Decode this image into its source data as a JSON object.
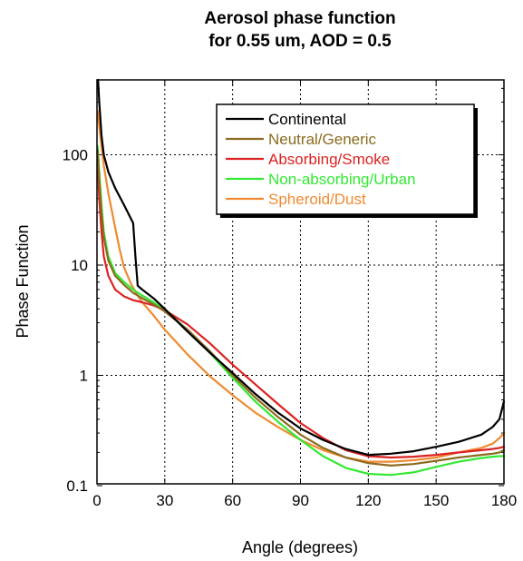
{
  "chart_data": {
    "type": "line",
    "title": "Aerosol phase function",
    "subtitle": "for 0.55 um, AOD = 0.5",
    "xlabel": "Angle (degrees)",
    "ylabel": "Phase Function",
    "xlim": [
      0,
      180
    ],
    "ylim": [
      0.1,
      600
    ],
    "yscale": "log",
    "grid": true,
    "legend_position": "top-right",
    "x_ticks": [
      0,
      30,
      60,
      90,
      120,
      150,
      180
    ],
    "x_tick_labels": [
      "0",
      "30",
      "60",
      "90",
      "120",
      "150",
      "180"
    ],
    "y_ticks": [
      0.1,
      1,
      10,
      100
    ],
    "y_tick_labels": [
      "0.1",
      "1",
      "10",
      "100"
    ],
    "series": [
      {
        "name": "Continental",
        "color": "#000000",
        "x": [
          0.5,
          1,
          2,
          3,
          5,
          8,
          12,
          16,
          17,
          18,
          20,
          25,
          30,
          40,
          50,
          60,
          70,
          80,
          90,
          100,
          110,
          120,
          130,
          140,
          150,
          160,
          170,
          175,
          178,
          180
        ],
        "y": [
          600,
          300,
          150,
          100,
          70,
          50,
          35,
          24,
          12,
          6.5,
          6.0,
          5.0,
          4.0,
          2.5,
          1.6,
          1.05,
          0.68,
          0.46,
          0.33,
          0.26,
          0.215,
          0.19,
          0.195,
          0.205,
          0.225,
          0.25,
          0.29,
          0.34,
          0.4,
          0.58
        ]
      },
      {
        "name": "Neutral/Generic",
        "color": "#8b6b1f",
        "x": [
          0.3,
          1,
          2,
          3,
          5,
          8,
          12,
          16,
          20,
          25,
          30,
          40,
          50,
          60,
          70,
          80,
          90,
          100,
          110,
          120,
          130,
          140,
          150,
          160,
          170,
          175,
          178,
          180
        ],
        "y": [
          110,
          60,
          30,
          18,
          11,
          8.0,
          6.6,
          5.6,
          5.0,
          4.4,
          3.8,
          2.6,
          1.65,
          1.0,
          0.63,
          0.42,
          0.29,
          0.22,
          0.18,
          0.16,
          0.152,
          0.157,
          0.168,
          0.18,
          0.19,
          0.195,
          0.2,
          0.21
        ]
      },
      {
        "name": "Absorbing/Smoke",
        "color": "#dd2222",
        "x": [
          0.3,
          1,
          2,
          3,
          5,
          8,
          12,
          16,
          20,
          25,
          30,
          40,
          50,
          60,
          70,
          80,
          90,
          100,
          110,
          120,
          130,
          140,
          150,
          160,
          170,
          175,
          178,
          180
        ],
        "y": [
          90,
          40,
          20,
          12,
          8.0,
          6.0,
          5.2,
          4.8,
          4.6,
          4.3,
          3.9,
          2.9,
          1.95,
          1.25,
          0.83,
          0.55,
          0.37,
          0.27,
          0.21,
          0.185,
          0.18,
          0.183,
          0.19,
          0.2,
          0.21,
          0.215,
          0.22,
          0.225
        ]
      },
      {
        "name": "Non-absorbing/Urban",
        "color": "#33e833",
        "x": [
          0.3,
          1,
          2,
          3,
          5,
          8,
          12,
          16,
          20,
          25,
          30,
          40,
          50,
          60,
          70,
          80,
          90,
          100,
          110,
          120,
          130,
          140,
          150,
          160,
          170,
          175,
          178,
          180
        ],
        "y": [
          120,
          70,
          35,
          20,
          12,
          8.5,
          7.0,
          6.0,
          5.3,
          4.6,
          3.9,
          2.6,
          1.6,
          0.95,
          0.58,
          0.38,
          0.26,
          0.185,
          0.145,
          0.128,
          0.125,
          0.132,
          0.148,
          0.165,
          0.178,
          0.183,
          0.185,
          0.185
        ]
      },
      {
        "name": "Spheroid/Dust",
        "color": "#f08a30",
        "x": [
          0.3,
          1,
          2,
          3,
          5,
          8,
          10,
          12,
          15,
          18,
          20,
          25,
          30,
          40,
          50,
          60,
          70,
          80,
          90,
          100,
          110,
          120,
          130,
          140,
          150,
          160,
          170,
          175,
          178,
          180
        ],
        "y": [
          250,
          180,
          120,
          80,
          45,
          22,
          14,
          9.5,
          6.8,
          5.3,
          4.6,
          3.5,
          2.6,
          1.55,
          0.98,
          0.66,
          0.46,
          0.34,
          0.26,
          0.21,
          0.18,
          0.165,
          0.165,
          0.17,
          0.18,
          0.2,
          0.22,
          0.24,
          0.27,
          0.3
        ]
      }
    ]
  }
}
